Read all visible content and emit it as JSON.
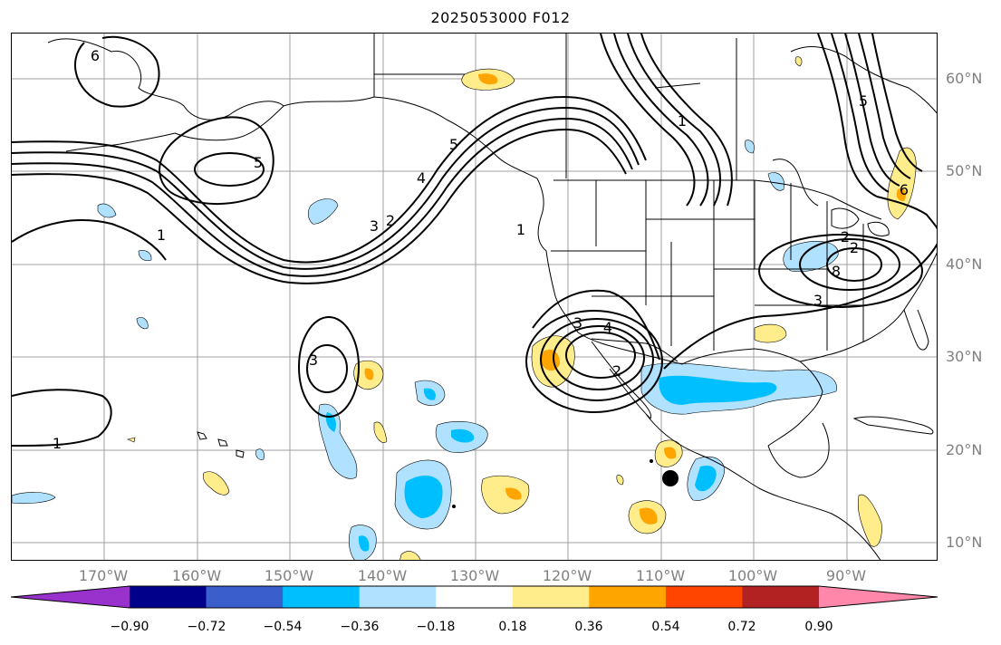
{
  "title": "2025053000 F012",
  "lat_labels": [
    "60°N",
    "50°N",
    "40°N",
    "30°N",
    "20°N",
    "10°N"
  ],
  "lon_labels": [
    "170°W",
    "160°W",
    "150°W",
    "140°W",
    "130°W",
    "120°W",
    "110°W",
    "100°W",
    "90°W"
  ],
  "contour_labels": [
    "6",
    "5",
    "1",
    "1",
    "1",
    "4",
    "3",
    "2",
    "5",
    "3",
    "2",
    "1",
    "4",
    "5",
    "3",
    "2",
    "6",
    "2",
    "8",
    "3"
  ],
  "colorbar": {
    "colors": [
      "#9932cc",
      "#00008b",
      "#3a5fcd",
      "#00bfff",
      "#b0e2ff",
      "#ffffff",
      "#ffec8b",
      "#ffa500",
      "#ff4500",
      "#b22222",
      "#ff88aa"
    ],
    "ticks": [
      "−0.90",
      "−0.72",
      "−0.54",
      "−0.36",
      "−0.18",
      "0.18",
      "0.36",
      "0.54",
      "0.72",
      "0.90"
    ]
  }
}
